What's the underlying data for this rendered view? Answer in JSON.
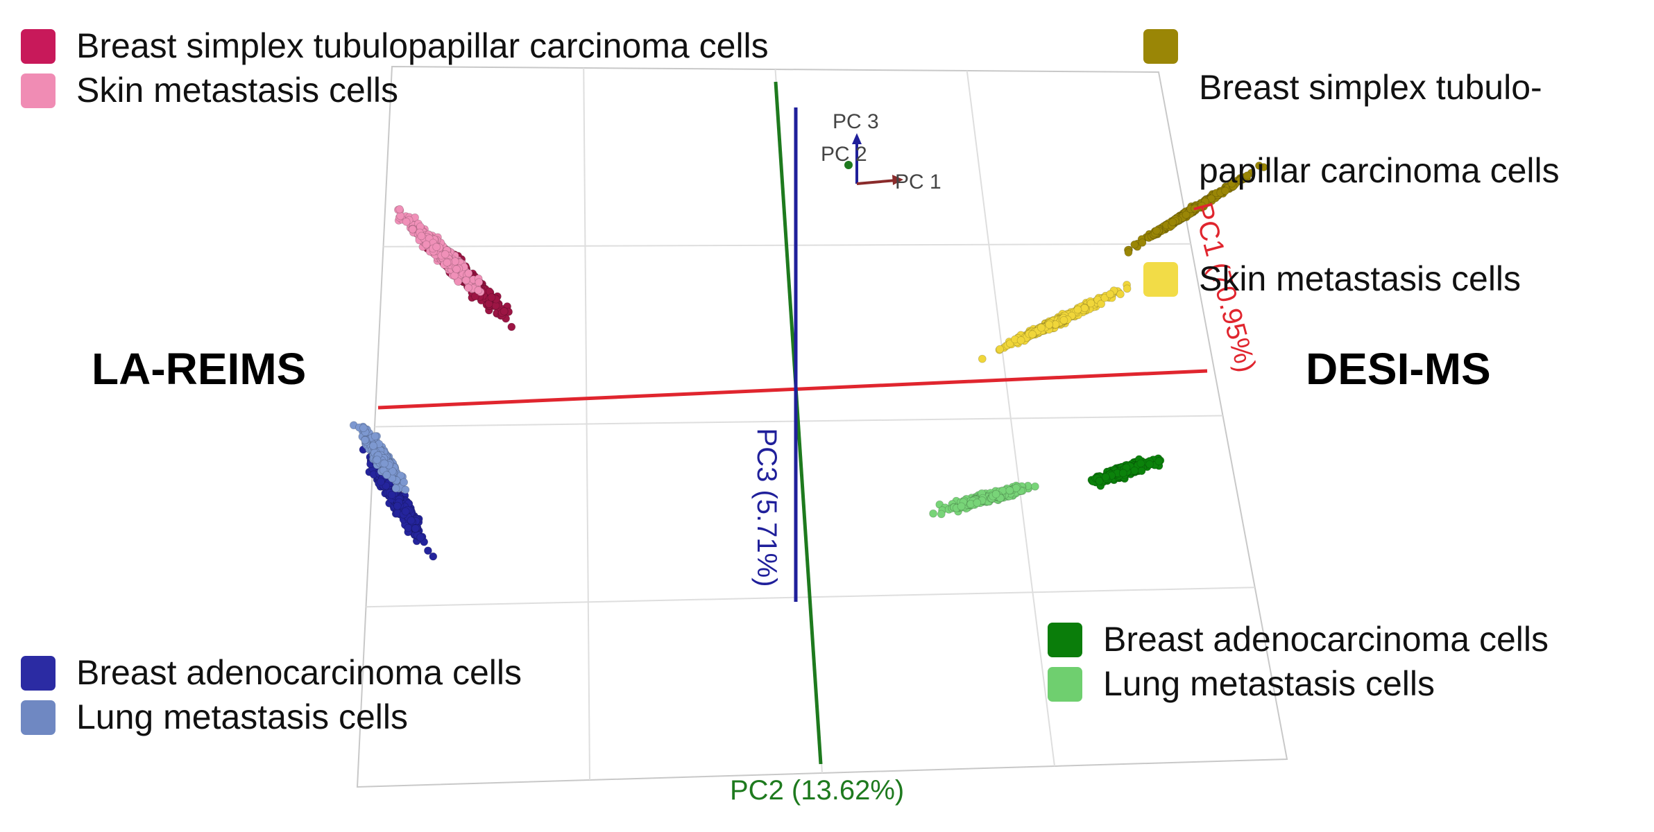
{
  "chart_data": {
    "type": "scatter",
    "title": "",
    "methods": {
      "left": "LA-REIMS",
      "right": "DESI-MS"
    },
    "axes": {
      "pc1": {
        "label": "PC1 (70.95%)",
        "color": "#e0252e"
      },
      "pc2": {
        "label": "PC2 (13.62%)",
        "color": "#1e7a1e"
      },
      "pc3": {
        "label": "PC3 (5.71%)",
        "color": "#1f1f9a"
      }
    },
    "orientation_labels": [
      "PC 3",
      "PC 2",
      "PC 1"
    ],
    "legends": {
      "left_top": [
        {
          "label": "Breast simplex tubulopapillar carcinoma cells",
          "color": "#c8195a"
        },
        {
          "label": "Skin metastasis cells",
          "color": "#f08cb4"
        }
      ],
      "left_bottom": [
        {
          "label": "Breast adenocarcinoma cells",
          "color": "#2b2ba3"
        },
        {
          "label": "Lung metastasis cells",
          "color": "#6f88c2"
        }
      ],
      "right_top": [
        {
          "label": "Breast  simplex  tubulo-",
          "label2": "papillar carcinoma cells",
          "color": "#9a8606"
        },
        {
          "label": "Skin metastasis cells",
          "color": "#f2dc47"
        }
      ],
      "right_bottom": [
        {
          "label": "Breast adenocarcinoma cells",
          "color": "#0a7d0a"
        },
        {
          "label": "Lung metastasis cells",
          "color": "#6fcf6f"
        }
      ]
    },
    "series": [
      {
        "name": "Breast simplex tubulopapillar carcinoma cells",
        "method": "LA-REIMS",
        "color": "#9c1544",
        "pc1": -0.68,
        "pc2": 0.31
      },
      {
        "name": "Skin metastasis cells",
        "method": "LA-REIMS",
        "color": "#f090b8",
        "pc1": -0.73,
        "pc2": 0.37
      },
      {
        "name": "Breast adenocarcinoma cells",
        "method": "LA-REIMS",
        "color": "#24249c",
        "pc1": -0.82,
        "pc2": -0.22
      },
      {
        "name": "Lung metastasis cells",
        "method": "LA-REIMS",
        "color": "#7d98d0",
        "pc1": -0.85,
        "pc2": -0.12
      },
      {
        "name": "Breast simplex tubulopapillar carcinoma cells",
        "method": "DESI-MS",
        "color": "#9a8606",
        "pc1": 0.82,
        "pc2": 0.39
      },
      {
        "name": "Skin metastasis cells",
        "method": "DESI-MS",
        "color": "#f0d63a",
        "pc1": 0.55,
        "pc2": 0.14
      },
      {
        "name": "Breast adenocarcinoma cells",
        "method": "DESI-MS",
        "color": "#0b820b",
        "pc1": 0.68,
        "pc2": -0.23
      },
      {
        "name": "Lung metastasis cells",
        "method": "DESI-MS",
        "color": "#78d478",
        "pc1": 0.4,
        "pc2": -0.28
      }
    ],
    "grid": true
  }
}
